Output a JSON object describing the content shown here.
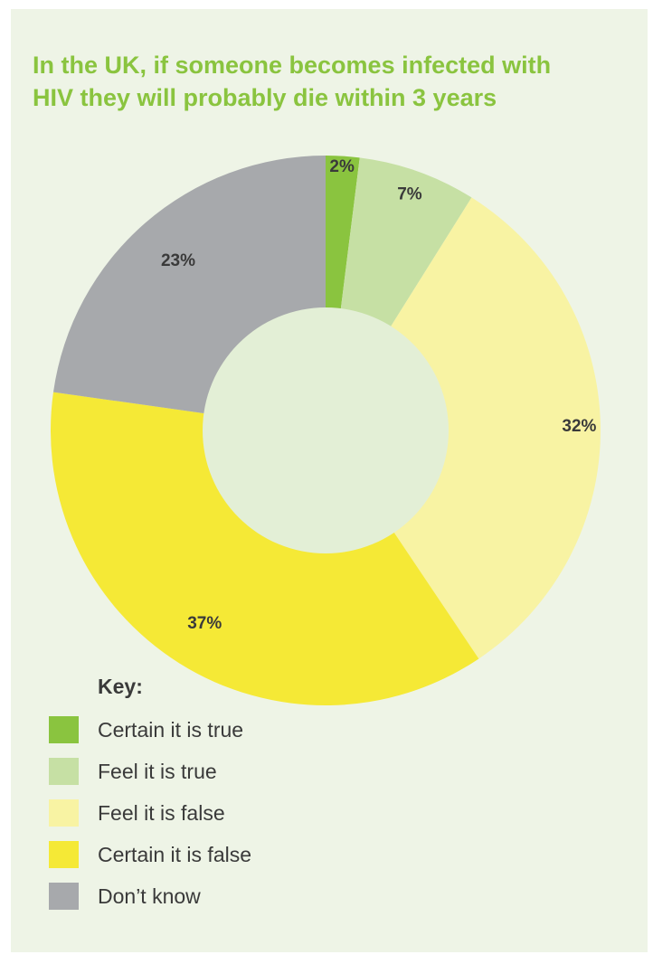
{
  "chart_data": {
    "type": "pie",
    "title": "In the UK, if someone becomes infected with HIV they will probably die within 3 years",
    "title_lines": [
      "In the UK, if someone becomes infected with",
      "HIV they will probably die within 3 years"
    ],
    "donut": true,
    "categories": [
      "Certain it is true",
      "Feel it is true",
      "Feel it is false",
      "Certain it is false",
      "Don’t know"
    ],
    "values": [
      2,
      7,
      32,
      37,
      23
    ],
    "data_labels": [
      "2%",
      "7%",
      "32%",
      "37%",
      "23%"
    ],
    "colors": [
      "#8ac43f",
      "#c6e0a4",
      "#f8f3a3",
      "#f5e936",
      "#a7a9ac"
    ],
    "legend_title": "Key:",
    "legend_position": "bottom-left"
  },
  "colors": {
    "background": "#eef4e6",
    "hole": "#e3efd6",
    "title": "#8ac43f",
    "text": "#3a3a3a"
  }
}
